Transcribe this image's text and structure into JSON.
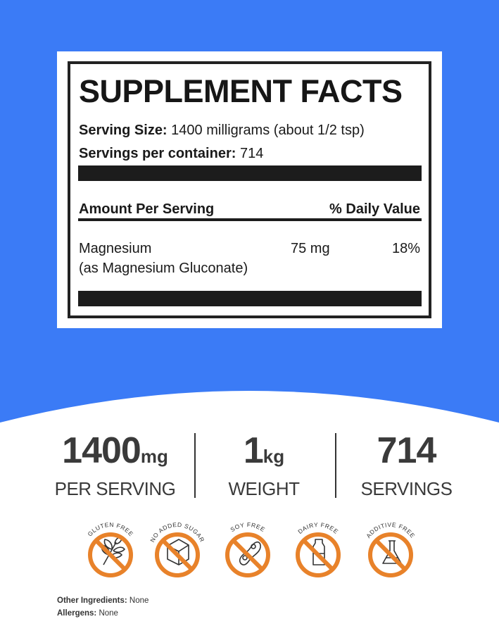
{
  "colors": {
    "background": "#3b7bf6",
    "badge": "#e8822a"
  },
  "facts": {
    "title": "SUPPLEMENT FACTS",
    "serving_size_label": "Serving Size:",
    "serving_size_value": "1400 milligrams (about 1/2 tsp)",
    "servings_label": "Servings per container:",
    "servings_value": "714",
    "amount_header": "Amount Per Serving",
    "dv_header": "% Daily Value",
    "ingredients": [
      {
        "name": "Magnesium",
        "source": "(as Magnesium Gluconate)",
        "amount": "75 mg",
        "dv": "18%"
      }
    ]
  },
  "stats": [
    {
      "value": "1400",
      "unit": "mg",
      "label": "PER SERVING"
    },
    {
      "value": "1",
      "unit": "kg",
      "label": "WEIGHT"
    },
    {
      "value": "714",
      "unit": "",
      "label": "SERVINGS"
    }
  ],
  "badges": [
    {
      "label": "GLUTEN FREE",
      "icon": "wheat-icon"
    },
    {
      "label": "NO ADDED SUGAR",
      "icon": "sugar-cube-icon"
    },
    {
      "label": "SOY FREE",
      "icon": "soybean-icon"
    },
    {
      "label": "DAIRY FREE",
      "icon": "milk-bottle-icon"
    },
    {
      "label": "ADDITIVE FREE",
      "icon": "flask-icon"
    }
  ],
  "footer": {
    "other_label": "Other Ingredients:",
    "other_value": "None",
    "allergens_label": "Allergens:",
    "allergens_value": "None"
  }
}
